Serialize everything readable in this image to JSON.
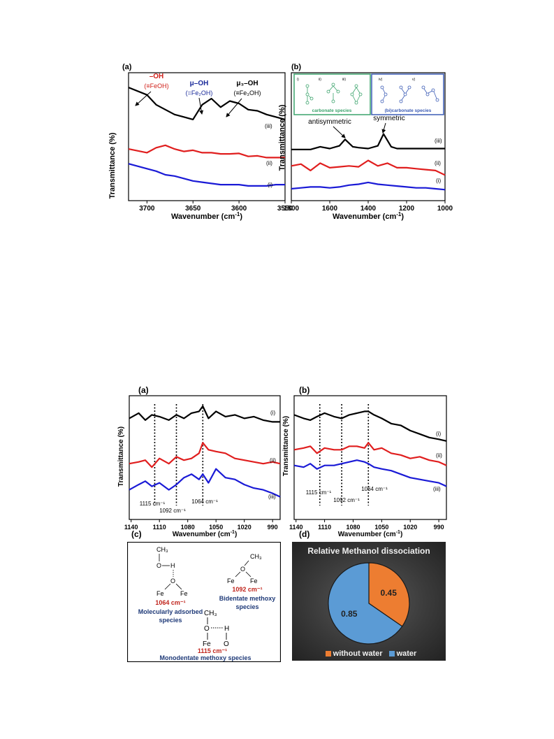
{
  "figure_top": {
    "panel_a": {
      "label": "(a)",
      "ylabel": "Transmittance (%)",
      "xlabel": "Wavenumber (cm",
      "xlabel_sup": "-1",
      "xlabel_end": ")",
      "xticks": [
        "3700",
        "3650",
        "3600",
        "3550"
      ],
      "curve_labels": [
        "(iii)",
        "(ii)",
        "(i)"
      ],
      "ann1_top": "–OH",
      "ann1_bot": "(≡FeOH)",
      "ann2_top": "μ–OH",
      "ann2_bot": "(=Fe₂OH)",
      "ann3_top": "μ₃–OH",
      "ann3_bot": "(≡Fe₃OH)"
    },
    "panel_b": {
      "label": "(b)",
      "ylabel": "Transmittance (%)",
      "xlabel": "Wavenumber (cm",
      "xlabel_sup": "-1",
      "xlabel_end": ")",
      "xticks": [
        "1800",
        "1600",
        "1400",
        "1200",
        "1000"
      ],
      "curve_labels": [
        "(iii)",
        "(ii)",
        "(i)"
      ],
      "ann_antisym": "antisymmetric",
      "ann_sym": "symmetric",
      "inset_carbonate": "carbonate species",
      "inset_bicarbonate": "(bi)carbonate species",
      "inset_numerals": [
        "i)",
        "ii)",
        "iii)",
        "iv)",
        "v)"
      ]
    }
  },
  "figure_bottom": {
    "panel_a": {
      "label": "(a)",
      "ylabel": "Transmittance (%)",
      "xlabel": "Wavenumber (cm",
      "xlabel_sup": "-1",
      "xlabel_end": ")",
      "xticks": [
        "1140",
        "1110",
        "1080",
        "1050",
        "1020",
        "990"
      ],
      "curve_labels": [
        "(i)",
        "(ii)",
        "(iii)"
      ],
      "peak1": "1115 cm⁻¹",
      "peak2": "1092 cm⁻¹",
      "peak3": "1064 cm⁻¹"
    },
    "panel_b": {
      "label": "(b)",
      "ylabel": "Transmittance (%)",
      "xlabel": "Wavenumber (cm",
      "xlabel_sup": "-1",
      "xlabel_end": ")",
      "xticks": [
        "1140",
        "1110",
        "1080",
        "1050",
        "1020",
        "990"
      ],
      "curve_labels": [
        "(i)",
        "(ii)",
        "(iii)"
      ],
      "peak1": "1115 cm⁻¹",
      "peak2": "1092 cm⁻¹",
      "peak3": "1064 cm⁻¹"
    },
    "panel_c": {
      "label": "(c)",
      "s1_freq": "1064 cm⁻¹",
      "s1_name_line1": "Molecularly adsorbed",
      "s1_name_line2": "species",
      "s2_freq": "1092 cm⁻¹",
      "s2_name_line1": "Bidentate methoxy",
      "s2_name_line2": "species",
      "s3_freq": "1115 cm⁻¹",
      "s3_name": "Monodentate methoxy species",
      "atoms": {
        "ch3": "CH₃",
        "o": "O",
        "h": "H",
        "fe": "Fe"
      }
    },
    "panel_d": {
      "label": "(d)",
      "title": "Relative Methanol dissociation",
      "legend": [
        "without water",
        "water"
      ],
      "colors": {
        "without water": "#ed7d31",
        "water": "#5b9bd5"
      }
    }
  },
  "chart_data": [
    {
      "type": "line",
      "panel": "top (a)",
      "xlabel": "Wavenumber (cm-1)",
      "ylabel": "Transmittance (%)",
      "xlim": [
        3720,
        3550
      ],
      "series": [
        {
          "name": "(iii)",
          "x": [
            3720,
            3700,
            3690,
            3680,
            3670,
            3660,
            3650,
            3640,
            3630,
            3620,
            3610,
            3600,
            3590,
            3580,
            3570,
            3560,
            3550
          ],
          "y": [
            5.4,
            5.1,
            4.7,
            4.5,
            4.3,
            4.2,
            4.1,
            4.7,
            4.95,
            4.6,
            4.85,
            4.75,
            4.5,
            4.45,
            4.3,
            4.2,
            4.1
          ]
        },
        {
          "name": "(ii)",
          "x": [
            3720,
            3700,
            3690,
            3680,
            3670,
            3660,
            3650,
            3640,
            3630,
            3620,
            3610,
            3600,
            3590,
            3580,
            3570,
            3560,
            3550
          ],
          "y": [
            2.9,
            2.75,
            2.95,
            3.05,
            2.9,
            2.8,
            2.85,
            2.75,
            2.75,
            2.7,
            2.7,
            2.72,
            2.6,
            2.62,
            2.55,
            2.55,
            2.55
          ]
        },
        {
          "name": "(i)",
          "x": [
            3720,
            3700,
            3690,
            3680,
            3670,
            3660,
            3650,
            3640,
            3630,
            3620,
            3610,
            3600,
            3590,
            3580,
            3570,
            3560,
            3550
          ],
          "y": [
            2.3,
            2.1,
            2.0,
            1.85,
            1.8,
            1.7,
            1.6,
            1.55,
            1.5,
            1.45,
            1.45,
            1.45,
            1.4,
            1.4,
            1.4,
            1.45,
            1.45
          ]
        }
      ]
    },
    {
      "type": "line",
      "panel": "top (b)",
      "xlabel": "Wavenumber (cm-1)",
      "ylabel": "Transmittance (%)",
      "xlim": [
        1800,
        1000
      ],
      "series": [
        {
          "name": "(iii)",
          "x": [
            1800,
            1700,
            1650,
            1600,
            1550,
            1520,
            1480,
            1450,
            1400,
            1350,
            1320,
            1280,
            1250,
            1200,
            1100,
            1000
          ],
          "y": [
            4.0,
            4.0,
            4.15,
            4.05,
            4.2,
            4.55,
            4.15,
            4.1,
            4.05,
            4.2,
            4.85,
            4.15,
            4.05,
            4.05,
            4.05,
            4.05
          ]
        },
        {
          "name": "(ii)",
          "x": [
            1800,
            1750,
            1700,
            1650,
            1600,
            1550,
            1500,
            1450,
            1400,
            1350,
            1300,
            1250,
            1200,
            1150,
            1100,
            1050,
            1000
          ],
          "y": [
            3.1,
            3.2,
            2.85,
            3.25,
            3.0,
            3.05,
            3.1,
            3.05,
            3.4,
            3.1,
            3.25,
            3.0,
            3.0,
            2.95,
            2.9,
            2.85,
            2.6
          ]
        },
        {
          "name": "(i)",
          "x": [
            1800,
            1750,
            1700,
            1650,
            1600,
            1550,
            1500,
            1450,
            1400,
            1350,
            1300,
            1250,
            1200,
            1150,
            1100,
            1050,
            1000
          ],
          "y": [
            1.85,
            1.9,
            1.95,
            1.95,
            1.9,
            1.95,
            2.05,
            2.1,
            2.2,
            2.1,
            2.05,
            2.0,
            1.95,
            1.9,
            1.9,
            1.85,
            1.8
          ]
        }
      ]
    },
    {
      "type": "line",
      "panel": "bottom (a)",
      "xlabel": "Wavenumber (cm-1)",
      "ylabel": "Transmittance (%)",
      "xlim": [
        1142,
        982
      ],
      "series": [
        {
          "name": "(i)",
          "x": [
            1142,
            1132,
            1125,
            1118,
            1110,
            1100,
            1092,
            1084,
            1076,
            1068,
            1064,
            1058,
            1050,
            1040,
            1030,
            1020,
            1010,
            1000,
            990,
            982
          ],
          "y": [
            5.3,
            5.6,
            5.2,
            5.5,
            5.4,
            5.2,
            5.5,
            5.3,
            5.6,
            5.7,
            6.0,
            5.3,
            5.7,
            5.4,
            5.5,
            5.3,
            5.4,
            5.2,
            5.1,
            5.1
          ]
        },
        {
          "name": "(ii)",
          "x": [
            1142,
            1132,
            1125,
            1118,
            1110,
            1100,
            1092,
            1084,
            1076,
            1068,
            1064,
            1058,
            1050,
            1040,
            1030,
            1020,
            1010,
            1000,
            990,
            982
          ],
          "y": [
            2.7,
            2.8,
            2.9,
            2.5,
            3.0,
            2.7,
            3.1,
            2.9,
            3.0,
            3.3,
            3.9,
            3.5,
            3.4,
            3.3,
            3.0,
            2.9,
            2.8,
            2.7,
            2.8,
            2.7
          ]
        },
        {
          "name": "(iii)",
          "x": [
            1142,
            1132,
            1125,
            1118,
            1110,
            1100,
            1092,
            1084,
            1076,
            1068,
            1064,
            1058,
            1050,
            1040,
            1030,
            1020,
            1010,
            1000,
            990,
            982
          ],
          "y": [
            1.2,
            1.5,
            1.7,
            1.4,
            1.6,
            1.2,
            1.5,
            1.9,
            2.1,
            1.8,
            2.1,
            1.6,
            2.4,
            1.9,
            1.8,
            1.5,
            1.3,
            1.2,
            1.0,
            0.8
          ]
        }
      ]
    },
    {
      "type": "line",
      "panel": "bottom (b)",
      "xlabel": "Wavenumber (cm-1)",
      "ylabel": "Transmittance (%)",
      "xlim": [
        1142,
        982
      ],
      "series": [
        {
          "name": "(i)",
          "x": [
            1142,
            1132,
            1125,
            1118,
            1110,
            1100,
            1092,
            1084,
            1076,
            1068,
            1064,
            1058,
            1050,
            1040,
            1030,
            1020,
            1010,
            1000,
            990,
            982
          ],
          "y": [
            5.5,
            5.3,
            5.2,
            5.4,
            5.6,
            5.4,
            5.3,
            5.5,
            5.6,
            5.7,
            5.7,
            5.5,
            5.3,
            5.0,
            4.9,
            4.6,
            4.4,
            4.2,
            4.1,
            4.0
          ]
        },
        {
          "name": "(ii)",
          "x": [
            1142,
            1132,
            1125,
            1118,
            1110,
            1100,
            1092,
            1084,
            1076,
            1068,
            1064,
            1058,
            1050,
            1040,
            1030,
            1020,
            1010,
            1000,
            990,
            982
          ],
          "y": [
            3.5,
            3.6,
            3.7,
            3.3,
            3.6,
            3.5,
            3.5,
            3.7,
            3.7,
            3.6,
            3.9,
            3.5,
            3.6,
            3.3,
            3.2,
            3.0,
            3.1,
            2.9,
            2.8,
            2.6
          ]
        },
        {
          "name": "(iii)",
          "x": [
            1142,
            1132,
            1125,
            1118,
            1110,
            1100,
            1092,
            1084,
            1076,
            1068,
            1064,
            1058,
            1050,
            1040,
            1030,
            1020,
            1010,
            1000,
            990,
            982
          ],
          "y": [
            2.6,
            2.5,
            2.7,
            2.4,
            2.6,
            2.6,
            2.7,
            2.8,
            2.9,
            2.8,
            2.7,
            2.5,
            2.4,
            2.3,
            2.1,
            1.9,
            1.8,
            1.7,
            1.6,
            1.4
          ]
        }
      ]
    },
    {
      "type": "pie",
      "panel": "bottom (d)",
      "title": "Relative Methanol dissociation",
      "labels": [
        "without water",
        "water"
      ],
      "values": [
        0.45,
        0.85
      ]
    }
  ]
}
